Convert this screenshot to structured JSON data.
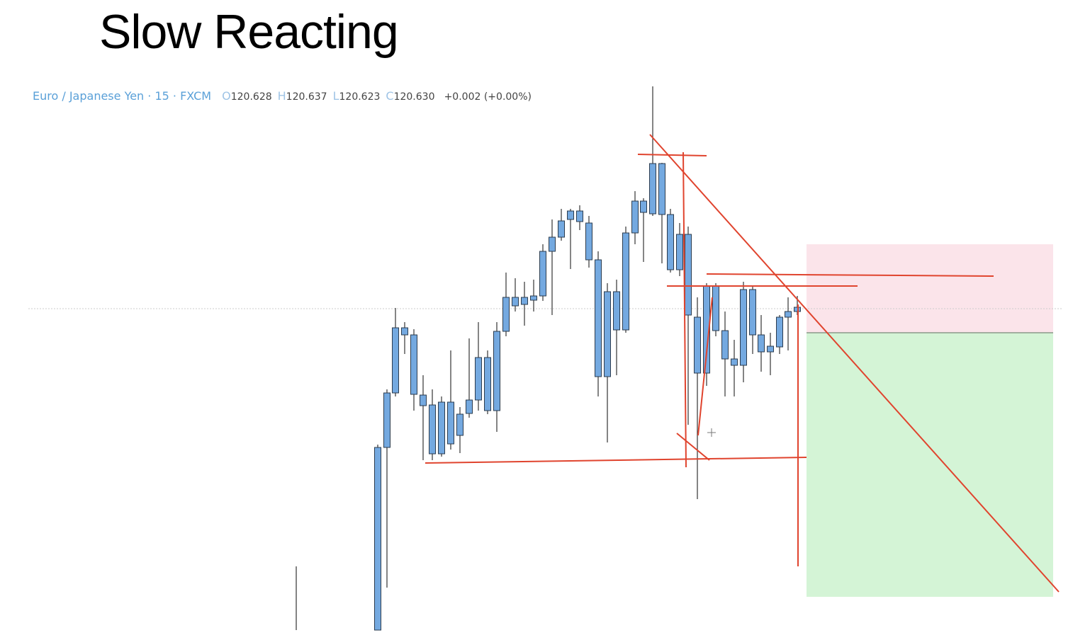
{
  "header": {
    "title": "Slow Reacting"
  },
  "chart_header": {
    "symbol": "Euro / Japanese Yen · 15 · FXCM",
    "ohlc": [
      {
        "label": "O",
        "value": "120.628"
      },
      {
        "label": "H",
        "value": "120.637"
      },
      {
        "label": "L",
        "value": "120.623"
      },
      {
        "label": "C",
        "value": "120.630"
      }
    ],
    "change": "+0.002 (+0.00%)"
  }
}
